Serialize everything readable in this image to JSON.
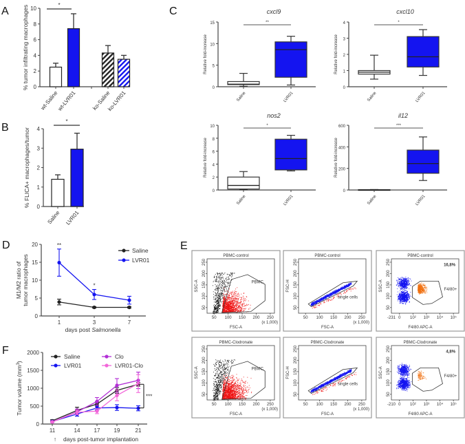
{
  "panels": [
    "A",
    "B",
    "C",
    "D",
    "E",
    "F"
  ],
  "colors": {
    "blue": "#1414f0",
    "black": "#222222",
    "clo": "#b22ed6",
    "lvr01_clo": "#f266d9",
    "red": "#ee1111",
    "orange": "#f07010"
  },
  "chart_data": [
    {
      "type": "bar",
      "panel": "A",
      "ylabel": "% tumor infiltrating macrophages",
      "ylim": [
        0,
        10
      ],
      "yticks": [
        0,
        2,
        4,
        6,
        8,
        10
      ],
      "categories": [
        "wt-Saline",
        "wt-LVR01",
        "ko-Saline",
        "ko-LVR01"
      ],
      "values": [
        2.5,
        7.4,
        4.3,
        3.5
      ],
      "errors": [
        0.5,
        1.9,
        0.95,
        0.5
      ],
      "fills": [
        "white",
        "blue",
        "hatch-black",
        "hatch-blue"
      ],
      "significance": {
        "between": [
          "wt-Saline",
          "wt-LVR01"
        ],
        "label": "*"
      }
    },
    {
      "type": "bar",
      "panel": "B",
      "ylabel": "% FLICA+ macrophages/tumor",
      "ylim": [
        0,
        4
      ],
      "yticks": [
        0,
        1,
        2,
        3,
        4
      ],
      "categories": [
        "Saline",
        "LVR01"
      ],
      "values": [
        1.4,
        2.95
      ],
      "errors": [
        0.23,
        0.82
      ],
      "fills": [
        "white",
        "blue"
      ],
      "significance": {
        "between": [
          "Saline",
          "LVR01"
        ],
        "label": "*"
      }
    },
    {
      "type": "box",
      "panel": "C",
      "title": "cxcl9",
      "ylabel": "Relative fold-increase",
      "ylim": [
        0,
        15
      ],
      "yticks": [
        0,
        5,
        10,
        15
      ],
      "categories": [
        "Saline",
        "LVR01"
      ],
      "boxes": [
        {
          "min": 0.1,
          "q1": 0.5,
          "median": 0.6,
          "q3": 1.2,
          "max": 3.1
        },
        {
          "min": 0.4,
          "q1": 2.2,
          "median": 8.6,
          "q3": 10.4,
          "max": 11.7
        }
      ],
      "significance": "**"
    },
    {
      "type": "box",
      "panel": "C",
      "title": "cxcl10",
      "ylabel": "Relative fold-increase",
      "ylim": [
        0,
        4
      ],
      "yticks": [
        0,
        1,
        2,
        3,
        4
      ],
      "categories": [
        "Saline",
        "LVR01"
      ],
      "boxes": [
        {
          "min": 0.47,
          "q1": 0.78,
          "median": 0.9,
          "q3": 1.0,
          "max": 1.95
        },
        {
          "min": 0.7,
          "q1": 1.22,
          "median": 1.85,
          "q3": 3.1,
          "max": 3.53
        }
      ],
      "significance": "*"
    },
    {
      "type": "box",
      "panel": "C",
      "title": "nos2",
      "ylabel": "Relative fold-increase",
      "ylim": [
        0,
        10
      ],
      "yticks": [
        0,
        2,
        4,
        6,
        8,
        10
      ],
      "categories": [
        "Saline",
        "LVR01"
      ],
      "boxes": [
        {
          "min": 0.05,
          "q1": 0.15,
          "median": 0.7,
          "q3": 2.0,
          "max": 2.85
        },
        {
          "min": 2.95,
          "q1": 3.1,
          "median": 4.85,
          "q3": 7.85,
          "max": 8.45
        }
      ],
      "significance": "*"
    },
    {
      "type": "box",
      "panel": "C",
      "title": "il12",
      "ylabel": "Relative fold-increase",
      "ylim": [
        0,
        600
      ],
      "yticks": [
        0,
        200,
        400,
        600
      ],
      "categories": [
        "Saline",
        "LVR01"
      ],
      "boxes": [
        {
          "min": 0,
          "q1": 1,
          "median": 2,
          "q3": 3,
          "max": 4
        },
        {
          "min": 88,
          "q1": 155,
          "median": 245,
          "q3": 370,
          "max": 492
        }
      ],
      "significance": "***"
    },
    {
      "type": "line",
      "panel": "D",
      "ylabel": [
        "M1/M2 ratio of",
        "tumor macrophages"
      ],
      "xlabel_prefix": "days post ",
      "xlabel_italic": "Salmonella",
      "x": [
        1,
        3,
        7
      ],
      "ylim": [
        0,
        20
      ],
      "yticks": [
        0,
        5,
        10,
        15,
        20
      ],
      "legend": "top-right",
      "series": [
        {
          "name": "Saline",
          "color": "black",
          "values": [
            3.9,
            2.4,
            2.4
          ],
          "errors": [
            0.8,
            0.2,
            0.2
          ]
        },
        {
          "name": "LVR01",
          "color": "blue",
          "values": [
            14.9,
            6.0,
            4.4
          ],
          "errors": [
            3.8,
            1.4,
            1.1
          ]
        }
      ],
      "annotations": [
        {
          "x": 1,
          "label": "**"
        },
        {
          "x": 3,
          "label": "*"
        }
      ]
    },
    {
      "type": "line",
      "panel": "F",
      "ylabel": "Tumor volume (mm",
      "ylabel_sup": "3",
      "ylabel_end": ")",
      "xlabel": "days post-tumor implantation",
      "arrow": "↑",
      "x": [
        11,
        14,
        17,
        19,
        21
      ],
      "ylim": [
        0,
        2000
      ],
      "yticks": [
        0,
        500,
        1000,
        1500,
        2000
      ],
      "legend": "top-left",
      "series": [
        {
          "name": "Saline",
          "color": "black",
          "values": [
            90,
            380,
            560,
            940,
            1110
          ],
          "errors": [
            30,
            90,
            60,
            80,
            50
          ]
        },
        {
          "name": "LVR01",
          "color": "blue",
          "values": [
            70,
            280,
            450,
            460,
            440
          ],
          "errors": [
            20,
            60,
            60,
            80,
            70
          ]
        },
        {
          "name": "Clo",
          "color": "clo",
          "values": [
            60,
            340,
            630,
            1080,
            1220
          ],
          "errors": [
            20,
            80,
            110,
            190,
            230
          ]
        },
        {
          "name": "LVR01-Clo",
          "color": "lvr01_clo",
          "values": [
            60,
            330,
            360,
            800,
            1130
          ],
          "errors": [
            20,
            60,
            70,
            150,
            250
          ]
        }
      ],
      "bracket": {
        "from": 1110,
        "to": 450,
        "label": "***"
      }
    },
    {
      "type": "scatter",
      "panel": "E",
      "rows": [
        {
          "title": "PBMC-control",
          "percent": "16,8%",
          "log_min": "-231"
        },
        {
          "title": "PBMC-Clodronate",
          "percent": "4,8%",
          "log_min": "-210"
        }
      ],
      "linear_ticks": [
        50,
        100,
        150,
        200,
        250
      ],
      "scale_note": "(x 1,000)",
      "log_ticks": [
        "0",
        "10²",
        "10³",
        "10⁴",
        "10⁵"
      ],
      "labels": {
        "ssc": "SSC-A",
        "fsc": "FSC-A",
        "fsch": "FSC-H",
        "apc": "F4/80 APC-A",
        "gate1": "PBMC",
        "gate2": "single cells",
        "gate3": "F4/80+"
      }
    }
  ]
}
